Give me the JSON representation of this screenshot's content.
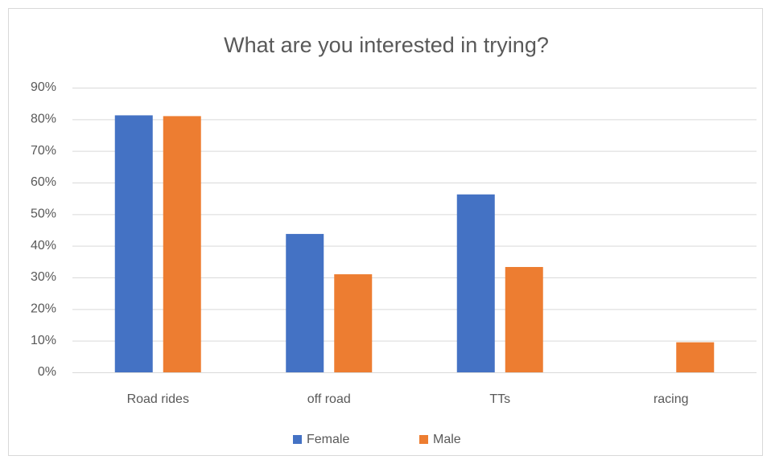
{
  "chart_data": {
    "type": "bar",
    "title": "What are you interested in trying?",
    "categories": [
      "Road rides",
      "off road",
      "TTs",
      "racing"
    ],
    "series": [
      {
        "name": "Female",
        "color": "#4472c4",
        "values": [
          81.25,
          43.75,
          56.25,
          0
        ]
      },
      {
        "name": "Male",
        "color": "#ed7d31",
        "values": [
          81,
          31,
          33.3,
          9.5
        ]
      }
    ],
    "ylim": [
      0,
      90
    ],
    "yticks": [
      {
        "value": 0,
        "label": "0%"
      },
      {
        "value": 10,
        "label": "10%"
      },
      {
        "value": 20,
        "label": "20%"
      },
      {
        "value": 30,
        "label": "30%"
      },
      {
        "value": 40,
        "label": "40%"
      },
      {
        "value": 50,
        "label": "50%"
      },
      {
        "value": 60,
        "label": "60%"
      },
      {
        "value": 70,
        "label": "70%"
      },
      {
        "value": 80,
        "label": "80%"
      },
      {
        "value": 90,
        "label": "90%"
      }
    ],
    "grid": true,
    "legend": "bottom"
  }
}
